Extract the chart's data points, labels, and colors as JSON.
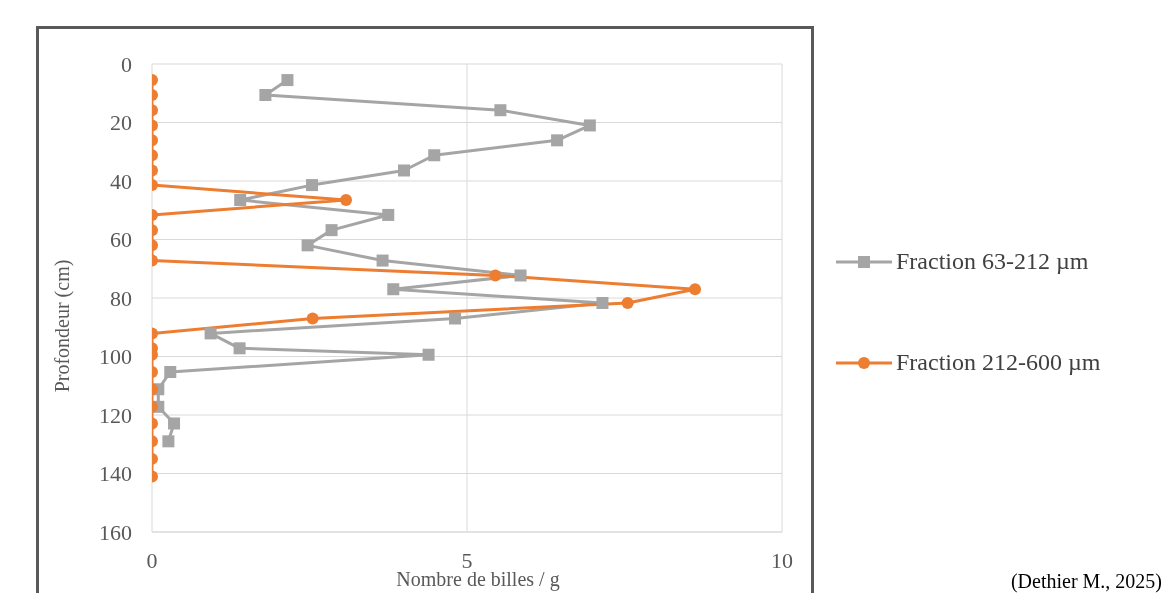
{
  "chart_data": {
    "type": "line",
    "orientation": "horizontal",
    "xlabel": "Nombre de billes / g",
    "ylabel": "Profondeur (cm)",
    "annotations": [
      "(Dethier M., 2025)"
    ],
    "x": [
      5.5,
      10.6,
      15.8,
      21,
      26.1,
      31.2,
      36.4,
      41.4,
      46.5,
      51.6,
      56.8,
      62,
      67.2,
      72.3,
      77,
      81.7,
      87,
      92.1,
      97.2,
      99.4,
      105.3,
      111.2,
      117.2,
      122.9,
      129,
      135,
      141
    ],
    "series": [
      {
        "name": "Fraction 63-212 µm",
        "color": "#a5a5a5",
        "marker": "square",
        "values": [
          2.15,
          1.8,
          5.53,
          6.95,
          6.43,
          4.48,
          4.0,
          2.54,
          1.4,
          3.75,
          2.85,
          2.47,
          3.66,
          5.85,
          3.83,
          7.15,
          4.81,
          0.93,
          1.39,
          4.39,
          0.29,
          0.1,
          0.1,
          0.35,
          0.26,
          null,
          null
        ]
      },
      {
        "name": "Fraction 212-600 µm",
        "color": "#ed7d31",
        "marker": "circle",
        "values": [
          0,
          0,
          0,
          0,
          0,
          0,
          0,
          0,
          3.08,
          0,
          0,
          0,
          0,
          5.45,
          8.62,
          7.55,
          2.55,
          0,
          0,
          0,
          0,
          0,
          0,
          0,
          0,
          0,
          0
        ]
      }
    ],
    "xlim": [
      0,
      10
    ],
    "xticks": [
      0,
      5,
      10
    ],
    "ylim": [
      160,
      0
    ],
    "yticks": [
      0,
      20,
      40,
      60,
      80,
      100,
      120,
      140,
      160
    ],
    "grid": true,
    "legend": "right",
    "line_style": "solid"
  }
}
